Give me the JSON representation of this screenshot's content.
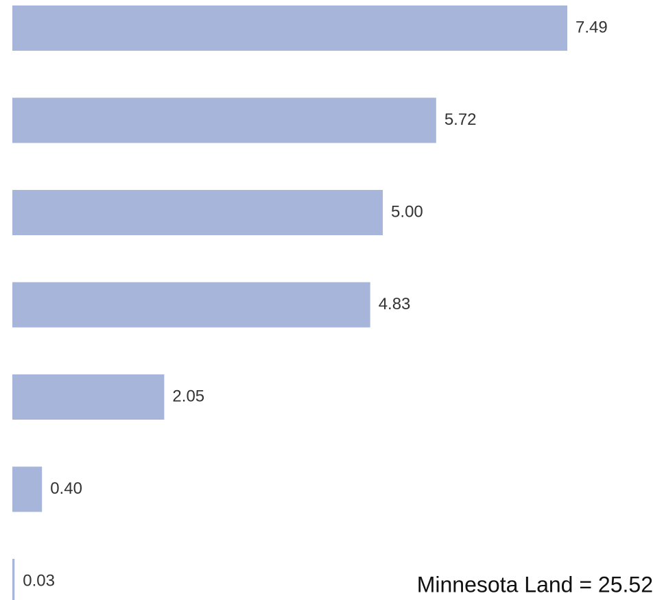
{
  "chart_data": {
    "type": "bar",
    "orientation": "horizontal",
    "values": [
      7.49,
      5.72,
      5.0,
      4.83,
      2.05,
      0.4,
      0.03
    ],
    "value_labels": [
      "7.49",
      "5.72",
      "5.00",
      "4.83",
      "2.05",
      "0.40",
      "0.03"
    ],
    "color": "#a8b5db",
    "annotation": "Minnesota Land = 25.52"
  }
}
